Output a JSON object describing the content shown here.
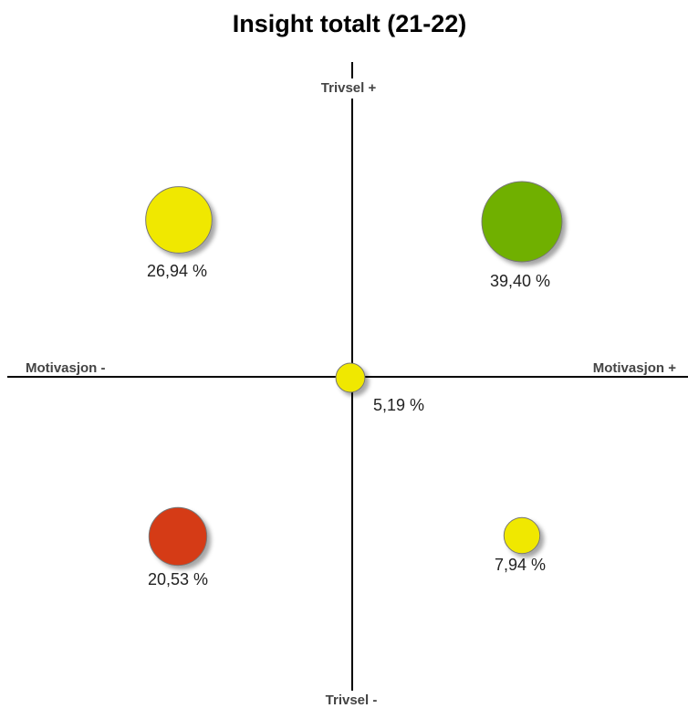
{
  "chart_data": {
    "type": "bubble",
    "title": "Insight totalt (21-22)",
    "y_axis_top": "Trivsel +",
    "y_axis_bottom": "Trivsel -",
    "x_axis_left": "Motivasjon -",
    "x_axis_right": "Motivasjon +",
    "values": [
      26.94,
      39.4,
      5.19,
      20.53,
      7.94
    ],
    "value_labels": [
      "26,94 %",
      "39,40 %",
      "5,19 %",
      "20,53 %",
      "7,94 %"
    ],
    "colors": [
      "#f0e800",
      "#6fb000",
      "#f0e800",
      "#d53a15",
      "#f0e800"
    ]
  }
}
